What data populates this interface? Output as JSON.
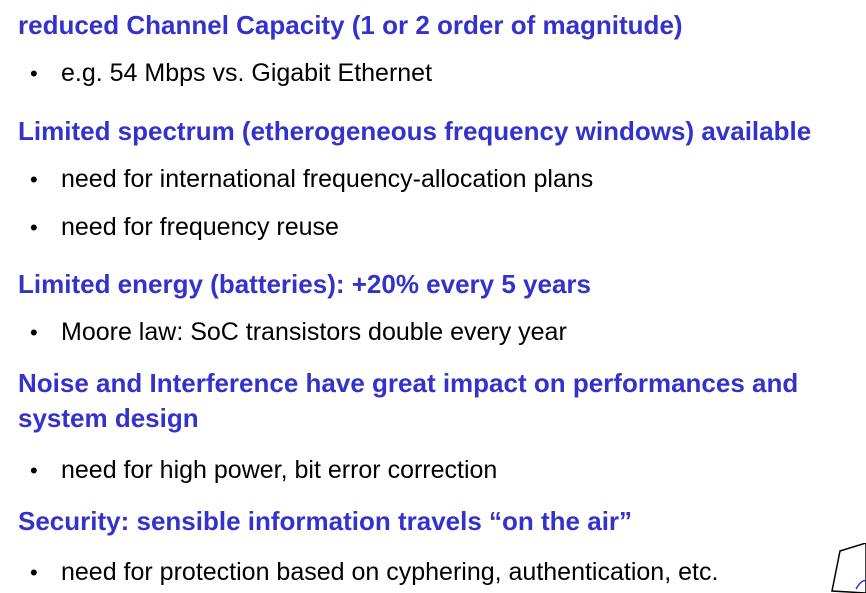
{
  "sections": [
    {
      "heading": "reduced Channel Capacity (1 or 2 order of magnitude)",
      "bullets": [
        "e.g. 54 Mbps vs. Gigabit Ethernet"
      ]
    },
    {
      "heading": "Limited spectrum (etherogeneous frequency windows) available",
      "bullets": [
        "need for international frequency-allocation plans",
        "need for frequency reuse"
      ]
    },
    {
      "heading": "Limited energy (batteries): +20% every 5 years",
      "bullets": [
        "Moore law: SoC transistors double every year"
      ]
    },
    {
      "heading_lines": [
        "Noise and Interference have great impact on performances and",
        "system design"
      ],
      "bullets": [
        "need for high power, bit error correction"
      ]
    },
    {
      "heading": "Security: sensible information travels “on the air”",
      "bullets": [
        "need for protection based on cyphering, authentication, etc."
      ]
    }
  ],
  "bullet_glyph": "•",
  "colors": {
    "heading": "#3333cc",
    "text": "#000000"
  }
}
